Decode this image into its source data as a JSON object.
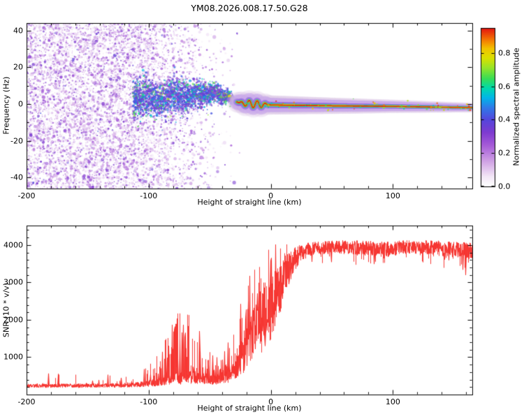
{
  "title": "YM08.2026.008.17.50.G28",
  "chart_data": [
    {
      "type": "heatmap",
      "panel": "spectrogram",
      "xlabel": "Height of straight line (km)",
      "ylabel": "Frequency (Hz)",
      "xlim": [
        -200,
        165
      ],
      "ylim": [
        -46,
        44
      ],
      "xticks": [
        -200,
        -100,
        0,
        100
      ],
      "yticks": [
        -40,
        -20,
        0,
        20,
        40
      ],
      "x_minor_step": 20,
      "y_minor_step": 10,
      "grid": false,
      "colorbar": {
        "label": "Normalized spectral amplitude",
        "ticks": [
          "0.0",
          "0.2",
          "0.4",
          "0.6",
          "0.8"
        ],
        "tick_values": [
          0,
          0.2,
          0.4,
          0.6,
          0.8
        ],
        "vmax": 0.95
      },
      "colormap": [
        [
          0.0,
          "#ffffff"
        ],
        [
          0.06,
          "#f3e7f7"
        ],
        [
          0.16,
          "#cfa0e4"
        ],
        [
          0.26,
          "#a55ad8"
        ],
        [
          0.34,
          "#7e3bd0"
        ],
        [
          0.42,
          "#5546dc"
        ],
        [
          0.5,
          "#2e7ce8"
        ],
        [
          0.56,
          "#00b6e8"
        ],
        [
          0.62,
          "#00d9ac"
        ],
        [
          0.68,
          "#36dd57"
        ],
        [
          0.75,
          "#97e428"
        ],
        [
          0.81,
          "#d9e000"
        ],
        [
          0.87,
          "#f2c400"
        ],
        [
          0.92,
          "#f58002"
        ],
        [
          1.0,
          "#e31410"
        ]
      ],
      "description": "Broadband purple speckle noise fills the panel below -100 km and thins out toward -35 km. A Doppler signal trace near 0 Hz emerges from the noise around -110 km, tightens through -40 km, and becomes a thin red-cored line with green/yellow halo from -25 km to 165 km, drifting slowly from +1 Hz down to -2 Hz.",
      "signal_centerline": [
        [
          -115,
          3
        ],
        [
          -100,
          4
        ],
        [
          -90,
          2.5
        ],
        [
          -80,
          5
        ],
        [
          -70,
          3.5
        ],
        [
          -60,
          5.5
        ],
        [
          -50,
          5
        ],
        [
          -45,
          7
        ],
        [
          -40,
          4
        ],
        [
          -35,
          4.5
        ],
        [
          -30,
          1.5
        ],
        [
          -25,
          0.5
        ],
        [
          -15,
          0
        ],
        [
          -5,
          -0.5
        ],
        [
          50,
          -1
        ],
        [
          100,
          -1.3
        ],
        [
          165,
          -2
        ]
      ],
      "noise_density": [
        [
          -200,
          1
        ],
        [
          -115,
          1
        ],
        [
          -95,
          0.75
        ],
        [
          -70,
          0.32
        ],
        [
          -50,
          0.12
        ],
        [
          -36,
          0.04
        ],
        [
          -27,
          0.012
        ],
        [
          -24,
          0
        ]
      ],
      "seed": 12345
    },
    {
      "type": "line",
      "panel": "snr",
      "xlabel": "Height of straight line (km)",
      "ylabel": "SNR (10 * v/v)",
      "xlim": [
        -200,
        165
      ],
      "ylim": [
        0,
        4520
      ],
      "xticks": [
        -200,
        -100,
        0,
        100
      ],
      "yticks": [
        1000,
        2000,
        3000,
        4000
      ],
      "x_minor_step": 20,
      "y_minor_step": 200,
      "grid": false,
      "color": "#f5312d",
      "description": "Noisy red SNR trace: flat floor near 240 until -100 km, spiky bursts to ~2300 around -70 km, a quieter shelf near -50 km, then a steep, highly fluctuating rise from -30 km through +15 km, reaching a noisy plateau around 3900-4000 from +25 km to 165 km with occasional downward spikes.",
      "envelope_fields": [
        "height_km",
        "snr_base",
        "noise_halfrange",
        "spike_probability",
        "spike_amplitude"
      ],
      "envelope": [
        [
          -200,
          235,
          55,
          0.03,
          350
        ],
        [
          -150,
          240,
          55,
          0.03,
          350
        ],
        [
          -118,
          250,
          60,
          0.05,
          350
        ],
        [
          -102,
          285,
          80,
          0.12,
          550
        ],
        [
          -93,
          330,
          105,
          0.25,
          850
        ],
        [
          -85,
          385,
          130,
          0.3,
          1300
        ],
        [
          -76,
          430,
          160,
          0.33,
          1750
        ],
        [
          -68,
          465,
          180,
          0.33,
          1800
        ],
        [
          -62,
          440,
          160,
          0.3,
          1400
        ],
        [
          -55,
          405,
          130,
          0.22,
          900
        ],
        [
          -48,
          380,
          120,
          0.18,
          650
        ],
        [
          -42,
          420,
          150,
          0.25,
          700
        ],
        [
          -36,
          520,
          220,
          0.35,
          900
        ],
        [
          -30,
          680,
          320,
          0.45,
          1100
        ],
        [
          -25,
          900,
          430,
          0.5,
          1300
        ],
        [
          -20,
          1250,
          600,
          0.5,
          1400
        ],
        [
          -14,
          1600,
          750,
          0.5,
          1400
        ],
        [
          -8,
          1950,
          850,
          0.5,
          1300
        ],
        [
          -2,
          2200,
          900,
          0.5,
          1200
        ],
        [
          3,
          2500,
          850,
          0.45,
          1000
        ],
        [
          8,
          2900,
          700,
          0.35,
          800
        ],
        [
          13,
          3250,
          500,
          0.25,
          600
        ],
        [
          18,
          3550,
          350,
          0.15,
          400
        ],
        [
          24,
          3780,
          240,
          0.08,
          300
        ],
        [
          32,
          3900,
          190,
          0.06,
          -400
        ],
        [
          55,
          3950,
          180,
          0.06,
          -400
        ],
        [
          75,
          3920,
          200,
          0.08,
          -500
        ],
        [
          95,
          3880,
          210,
          0.08,
          -550
        ],
        [
          115,
          3960,
          180,
          0.06,
          -450
        ],
        [
          135,
          3920,
          200,
          0.08,
          -600
        ],
        [
          150,
          3880,
          220,
          0.1,
          -650
        ],
        [
          165,
          3820,
          260,
          0.12,
          -750
        ]
      ],
      "seed": 777
    }
  ]
}
